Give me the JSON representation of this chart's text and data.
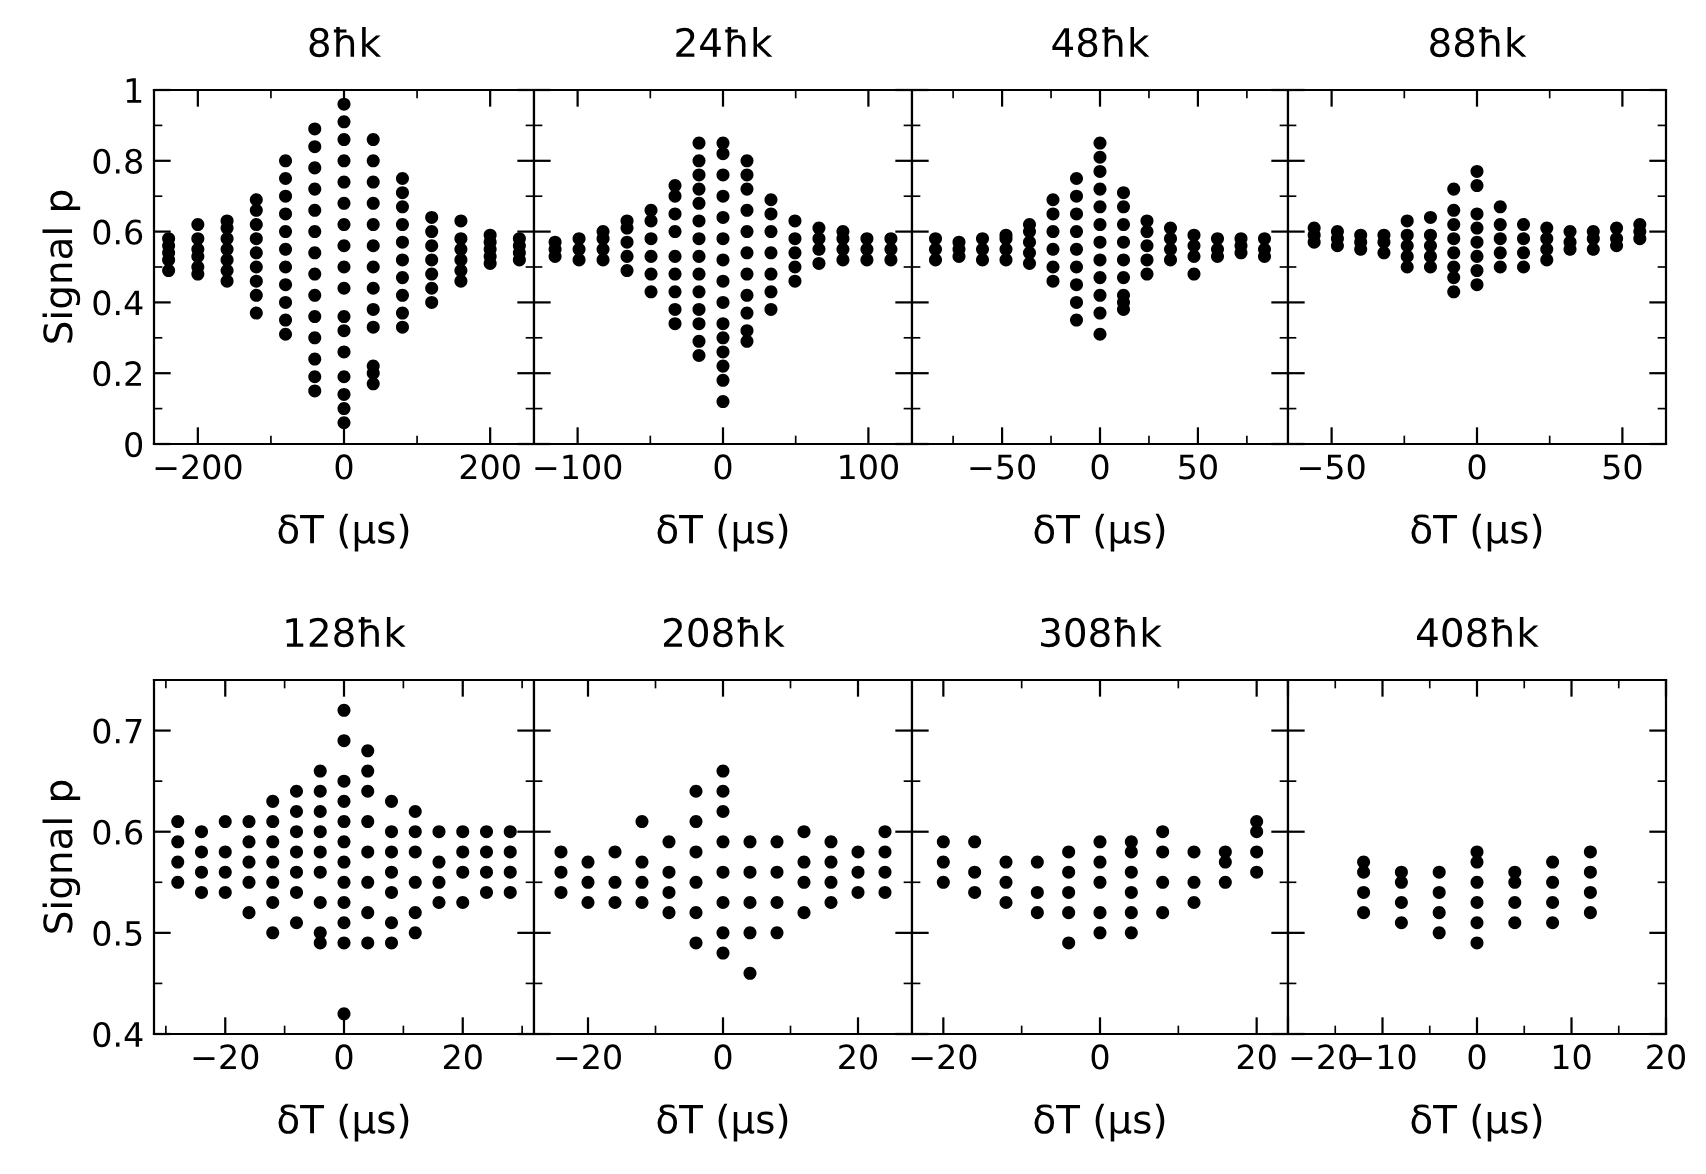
{
  "chart_data": [
    {
      "type": "scatter",
      "title": "8ħk",
      "xlabel": "δT (μs)",
      "ylabel": "Signal p",
      "color": "#000000",
      "marker": "circle",
      "x": [
        -240,
        -240,
        -240,
        -240,
        -240,
        -200,
        -200,
        -200,
        -200,
        -200,
        -200,
        -160,
        -160,
        -160,
        -160,
        -160,
        -160,
        -160,
        -120,
        -120,
        -120,
        -120,
        -120,
        -120,
        -120,
        -120,
        -120,
        -80,
        -80,
        -80,
        -80,
        -80,
        -80,
        -80,
        -80,
        -80,
        -80,
        -80,
        -40,
        -40,
        -40,
        -40,
        -40,
        -40,
        -40,
        -40,
        -40,
        -40,
        -40,
        -40,
        -40,
        -40,
        0,
        0,
        0,
        0,
        0,
        0,
        0,
        0,
        0,
        0,
        0,
        0,
        0,
        0,
        0,
        0,
        0,
        40,
        40,
        40,
        40,
        40,
        40,
        40,
        40,
        40,
        40,
        40,
        40,
        40,
        80,
        80,
        80,
        80,
        80,
        80,
        80,
        80,
        80,
        80,
        120,
        120,
        120,
        120,
        120,
        120,
        120,
        160,
        160,
        160,
        160,
        160,
        160,
        200,
        200,
        200,
        200,
        200,
        240,
        240,
        240,
        240
      ],
      "values": [
        0.49,
        0.52,
        0.54,
        0.56,
        0.58,
        0.48,
        0.5,
        0.53,
        0.55,
        0.58,
        0.62,
        0.46,
        0.49,
        0.52,
        0.55,
        0.58,
        0.61,
        0.63,
        0.37,
        0.42,
        0.46,
        0.5,
        0.54,
        0.58,
        0.62,
        0.66,
        0.69,
        0.31,
        0.35,
        0.4,
        0.45,
        0.5,
        0.55,
        0.6,
        0.65,
        0.7,
        0.75,
        0.8,
        0.15,
        0.19,
        0.24,
        0.3,
        0.36,
        0.42,
        0.48,
        0.54,
        0.6,
        0.66,
        0.72,
        0.78,
        0.84,
        0.89,
        0.06,
        0.1,
        0.14,
        0.19,
        0.26,
        0.32,
        0.36,
        0.44,
        0.5,
        0.56,
        0.62,
        0.68,
        0.74,
        0.8,
        0.86,
        0.91,
        0.96,
        0.17,
        0.2,
        0.22,
        0.33,
        0.38,
        0.44,
        0.5,
        0.56,
        0.62,
        0.68,
        0.74,
        0.8,
        0.86,
        0.33,
        0.37,
        0.42,
        0.47,
        0.52,
        0.57,
        0.62,
        0.67,
        0.71,
        0.75,
        0.4,
        0.44,
        0.48,
        0.52,
        0.56,
        0.6,
        0.64,
        0.46,
        0.49,
        0.52,
        0.55,
        0.58,
        0.63,
        0.51,
        0.53,
        0.55,
        0.57,
        0.59,
        0.52,
        0.54,
        0.56,
        0.58
      ],
      "xlim": [
        -260,
        260
      ],
      "xticks": [
        -200,
        0,
        200
      ],
      "ylim": [
        0,
        1
      ],
      "yticks": [
        0,
        0.2,
        0.4,
        0.6,
        0.8,
        1
      ]
    },
    {
      "type": "scatter",
      "title": "24ħk",
      "xlabel": "δT (μs)",
      "color": "#000000",
      "marker": "circle",
      "tick_labels": "x",
      "x": [
        -115.5,
        -115.5,
        -115.5,
        -99,
        -99,
        -99,
        -82.5,
        -82.5,
        -82.5,
        -82.5,
        -66,
        -66,
        -66,
        -66,
        -66,
        -49.5,
        -49.5,
        -49.5,
        -49.5,
        -49.5,
        -49.5,
        -33,
        -33,
        -33,
        -33,
        -33,
        -33,
        -33,
        -33,
        -33,
        -16.5,
        -16.5,
        -16.5,
        -16.5,
        -16.5,
        -16.5,
        -16.5,
        -16.5,
        -16.5,
        -16.5,
        -16.5,
        -16.5,
        -16.5,
        -16.5,
        0,
        0,
        0,
        0,
        0,
        0,
        0,
        0,
        0,
        0,
        0,
        0,
        0,
        0,
        0,
        16.5,
        16.5,
        16.5,
        16.5,
        16.5,
        16.5,
        16.5,
        16.5,
        16.5,
        16.5,
        16.5,
        33,
        33,
        33,
        33,
        33,
        33,
        33,
        49.5,
        49.5,
        49.5,
        49.5,
        49.5,
        66,
        66,
        66,
        66,
        82.5,
        82.5,
        82.5,
        82.5,
        99,
        99,
        99,
        115.5,
        115.5,
        115.5
      ],
      "values": [
        0.53,
        0.55,
        0.57,
        0.52,
        0.55,
        0.58,
        0.52,
        0.55,
        0.58,
        0.6,
        0.49,
        0.53,
        0.57,
        0.61,
        0.63,
        0.43,
        0.48,
        0.53,
        0.58,
        0.63,
        0.66,
        0.34,
        0.38,
        0.43,
        0.48,
        0.53,
        0.6,
        0.65,
        0.7,
        0.73,
        0.25,
        0.29,
        0.34,
        0.38,
        0.43,
        0.48,
        0.53,
        0.58,
        0.63,
        0.68,
        0.72,
        0.76,
        0.8,
        0.85,
        0.12,
        0.18,
        0.22,
        0.26,
        0.3,
        0.34,
        0.4,
        0.46,
        0.52,
        0.58,
        0.64,
        0.7,
        0.76,
        0.82,
        0.85,
        0.29,
        0.32,
        0.37,
        0.42,
        0.48,
        0.54,
        0.6,
        0.66,
        0.72,
        0.76,
        0.8,
        0.38,
        0.43,
        0.48,
        0.54,
        0.6,
        0.65,
        0.69,
        0.46,
        0.5,
        0.54,
        0.58,
        0.63,
        0.51,
        0.55,
        0.58,
        0.61,
        0.52,
        0.55,
        0.58,
        0.6,
        0.52,
        0.55,
        0.58,
        0.52,
        0.55,
        0.58
      ],
      "xlim": [
        -130,
        130
      ],
      "xticks": [
        -100,
        0,
        100
      ],
      "ylim": [
        0,
        1
      ],
      "yticks": [
        0,
        0.2,
        0.4,
        0.6,
        0.8,
        1
      ]
    },
    {
      "type": "scatter",
      "title": "48ħk",
      "xlabel": "δT (μs)",
      "color": "#000000",
      "marker": "circle",
      "tick_labels": "x",
      "x": [
        -84,
        -84,
        -84,
        -72,
        -72,
        -72,
        -60,
        -60,
        -60,
        -48,
        -48,
        -48,
        -48,
        -36,
        -36,
        -36,
        -36,
        -36,
        -24,
        -24,
        -24,
        -24,
        -24,
        -24,
        -12,
        -12,
        -12,
        -12,
        -12,
        -12,
        -12,
        -12,
        -12,
        0,
        0,
        0,
        0,
        0,
        0,
        0,
        0,
        0,
        0,
        0,
        0,
        12,
        12,
        12,
        12,
        12,
        12,
        12,
        12,
        12,
        24,
        24,
        24,
        24,
        24,
        36,
        36,
        36,
        36,
        48,
        48,
        48,
        48,
        60,
        60,
        60,
        72,
        72,
        72,
        84,
        84,
        84
      ],
      "values": [
        0.52,
        0.55,
        0.58,
        0.53,
        0.55,
        0.57,
        0.52,
        0.55,
        0.58,
        0.52,
        0.55,
        0.58,
        0.59,
        0.51,
        0.54,
        0.57,
        0.6,
        0.62,
        0.46,
        0.5,
        0.55,
        0.6,
        0.65,
        0.69,
        0.35,
        0.4,
        0.45,
        0.5,
        0.55,
        0.6,
        0.65,
        0.7,
        0.75,
        0.31,
        0.37,
        0.42,
        0.47,
        0.52,
        0.57,
        0.62,
        0.67,
        0.72,
        0.77,
        0.81,
        0.85,
        0.38,
        0.4,
        0.42,
        0.47,
        0.52,
        0.57,
        0.62,
        0.67,
        0.71,
        0.48,
        0.52,
        0.56,
        0.6,
        0.63,
        0.52,
        0.55,
        0.58,
        0.61,
        0.48,
        0.53,
        0.56,
        0.59,
        0.53,
        0.55,
        0.58,
        0.54,
        0.56,
        0.58,
        0.53,
        0.55,
        0.58
      ],
      "xlim": [
        -96,
        96
      ],
      "xticks": [
        -50,
        0,
        50
      ],
      "ylim": [
        0,
        1
      ],
      "yticks": [
        0,
        0.2,
        0.4,
        0.6,
        0.8,
        1
      ]
    },
    {
      "type": "scatter",
      "title": "88ħk",
      "xlabel": "δT (μs)",
      "color": "#000000",
      "marker": "circle",
      "tick_labels": "x",
      "x": [
        -56,
        -56,
        -56,
        -48,
        -48,
        -48,
        -40,
        -40,
        -40,
        -32,
        -32,
        -32,
        -24,
        -24,
        -24,
        -24,
        -24,
        -16,
        -16,
        -16,
        -16,
        -16,
        -8,
        -8,
        -8,
        -8,
        -8,
        -8,
        -8,
        -8,
        0,
        0,
        0,
        0,
        0,
        0,
        0,
        0,
        8,
        8,
        8,
        8,
        8,
        16,
        16,
        16,
        16,
        24,
        24,
        24,
        24,
        32,
        32,
        32,
        40,
        40,
        40,
        48,
        48,
        48,
        56,
        56,
        56
      ],
      "values": [
        0.57,
        0.59,
        0.61,
        0.56,
        0.58,
        0.6,
        0.55,
        0.57,
        0.59,
        0.54,
        0.57,
        0.59,
        0.5,
        0.53,
        0.56,
        0.59,
        0.63,
        0.5,
        0.53,
        0.56,
        0.59,
        0.64,
        0.43,
        0.47,
        0.5,
        0.54,
        0.58,
        0.62,
        0.66,
        0.72,
        0.45,
        0.49,
        0.53,
        0.57,
        0.61,
        0.65,
        0.73,
        0.77,
        0.5,
        0.54,
        0.58,
        0.62,
        0.67,
        0.5,
        0.54,
        0.58,
        0.62,
        0.52,
        0.55,
        0.58,
        0.61,
        0.55,
        0.57,
        0.6,
        0.55,
        0.58,
        0.6,
        0.56,
        0.58,
        0.61,
        0.58,
        0.6,
        0.62
      ],
      "xlim": [
        -65,
        65
      ],
      "xticks": [
        -50,
        0,
        50
      ],
      "ylim": [
        0,
        1
      ],
      "yticks": [
        0,
        0.2,
        0.4,
        0.6,
        0.8,
        1
      ]
    },
    {
      "type": "scatter",
      "title": "128ħk",
      "xlabel": "δT (μs)",
      "ylabel": "Signal p",
      "color": "#000000",
      "marker": "circle",
      "x": [
        -28,
        -28,
        -28,
        -28,
        -24,
        -24,
        -24,
        -24,
        -20,
        -20,
        -20,
        -20,
        -16,
        -16,
        -16,
        -16,
        -16,
        -12,
        -12,
        -12,
        -12,
        -12,
        -12,
        -12,
        -8,
        -8,
        -8,
        -8,
        -8,
        -8,
        -8,
        -4,
        -4,
        -4,
        -4,
        -4,
        -4,
        -4,
        -4,
        -4,
        0,
        0,
        0,
        0,
        0,
        0,
        0,
        0,
        0,
        0,
        0,
        0,
        4,
        4,
        4,
        4,
        4,
        4,
        4,
        4,
        8,
        8,
        8,
        8,
        8,
        8,
        8,
        12,
        12,
        12,
        12,
        12,
        12,
        16,
        16,
        16,
        16,
        20,
        20,
        20,
        20,
        24,
        24,
        24,
        24,
        28,
        28,
        28,
        28
      ],
      "values": [
        0.55,
        0.57,
        0.59,
        0.61,
        0.54,
        0.56,
        0.58,
        0.6,
        0.54,
        0.56,
        0.58,
        0.61,
        0.52,
        0.55,
        0.57,
        0.59,
        0.61,
        0.5,
        0.53,
        0.55,
        0.57,
        0.59,
        0.61,
        0.63,
        0.51,
        0.54,
        0.56,
        0.58,
        0.6,
        0.62,
        0.64,
        0.49,
        0.5,
        0.53,
        0.56,
        0.58,
        0.6,
        0.62,
        0.64,
        0.66,
        0.42,
        0.49,
        0.51,
        0.53,
        0.55,
        0.57,
        0.59,
        0.61,
        0.63,
        0.65,
        0.69,
        0.72,
        0.49,
        0.52,
        0.55,
        0.58,
        0.61,
        0.64,
        0.66,
        0.68,
        0.49,
        0.51,
        0.54,
        0.56,
        0.58,
        0.6,
        0.63,
        0.5,
        0.52,
        0.55,
        0.58,
        0.6,
        0.62,
        0.53,
        0.55,
        0.57,
        0.6,
        0.53,
        0.56,
        0.58,
        0.6,
        0.54,
        0.56,
        0.58,
        0.6,
        0.54,
        0.56,
        0.58,
        0.6
      ],
      "xlim": [
        -32,
        32
      ],
      "xticks": [
        -20,
        0,
        20
      ],
      "ylim": [
        0.4,
        0.75
      ],
      "yticks": [
        0.4,
        0.5,
        0.6,
        0.7
      ]
    },
    {
      "type": "scatter",
      "title": "208ħk",
      "xlabel": "δT (μs)",
      "color": "#000000",
      "marker": "circle",
      "tick_labels": "x",
      "x": [
        -24,
        -24,
        -24,
        -20,
        -20,
        -20,
        -16,
        -16,
        -16,
        -12,
        -12,
        -12,
        -12,
        -8,
        -8,
        -8,
        -8,
        -4,
        -4,
        -4,
        -4,
        -4,
        -4,
        0,
        0,
        0,
        0,
        0,
        0,
        0,
        0,
        4,
        4,
        4,
        4,
        4,
        8,
        8,
        8,
        8,
        12,
        12,
        12,
        12,
        16,
        16,
        16,
        16,
        20,
        20,
        20,
        24,
        24,
        24,
        24
      ],
      "values": [
        0.54,
        0.56,
        0.58,
        0.53,
        0.55,
        0.57,
        0.53,
        0.55,
        0.58,
        0.53,
        0.55,
        0.57,
        0.61,
        0.52,
        0.54,
        0.56,
        0.59,
        0.49,
        0.52,
        0.55,
        0.58,
        0.61,
        0.64,
        0.48,
        0.5,
        0.53,
        0.56,
        0.59,
        0.62,
        0.64,
        0.66,
        0.46,
        0.5,
        0.53,
        0.56,
        0.59,
        0.5,
        0.53,
        0.56,
        0.59,
        0.52,
        0.55,
        0.57,
        0.6,
        0.53,
        0.55,
        0.57,
        0.59,
        0.54,
        0.56,
        0.58,
        0.54,
        0.56,
        0.58,
        0.6
      ],
      "xlim": [
        -28,
        28
      ],
      "xticks": [
        -20,
        0,
        20
      ],
      "ylim": [
        0.4,
        0.75
      ],
      "yticks": [
        0.4,
        0.5,
        0.6,
        0.7
      ]
    },
    {
      "type": "scatter",
      "title": "308ħk",
      "xlabel": "δT (μs)",
      "color": "#000000",
      "marker": "circle",
      "tick_labels": "x",
      "x": [
        -20,
        -20,
        -20,
        -16,
        -16,
        -16,
        -12,
        -12,
        -12,
        -8,
        -8,
        -8,
        -4,
        -4,
        -4,
        -4,
        -4,
        0,
        0,
        0,
        0,
        0,
        4,
        4,
        4,
        4,
        4,
        4,
        8,
        8,
        8,
        8,
        12,
        12,
        12,
        16,
        16,
        16,
        20,
        20,
        20,
        20
      ],
      "values": [
        0.55,
        0.57,
        0.59,
        0.54,
        0.56,
        0.59,
        0.53,
        0.55,
        0.57,
        0.52,
        0.54,
        0.57,
        0.49,
        0.52,
        0.54,
        0.56,
        0.58,
        0.5,
        0.52,
        0.55,
        0.57,
        0.59,
        0.5,
        0.52,
        0.54,
        0.56,
        0.58,
        0.59,
        0.52,
        0.55,
        0.58,
        0.6,
        0.53,
        0.55,
        0.58,
        0.55,
        0.57,
        0.58,
        0.56,
        0.58,
        0.6,
        0.61
      ],
      "xlim": [
        -24,
        24
      ],
      "xticks": [
        -20,
        0,
        20
      ],
      "ylim": [
        0.4,
        0.75
      ],
      "yticks": [
        0.4,
        0.5,
        0.6,
        0.7
      ]
    },
    {
      "type": "scatter",
      "title": "408ħk",
      "xlabel": "δT (μs)",
      "color": "#000000",
      "marker": "circle",
      "tick_labels": "x",
      "x": [
        -12,
        -12,
        -12,
        -12,
        -8,
        -8,
        -8,
        -8,
        -4,
        -4,
        -4,
        -4,
        0,
        0,
        0,
        0,
        0,
        0,
        4,
        4,
        4,
        4,
        8,
        8,
        8,
        8,
        12,
        12,
        12,
        12
      ],
      "values": [
        0.52,
        0.54,
        0.56,
        0.57,
        0.51,
        0.53,
        0.55,
        0.56,
        0.5,
        0.52,
        0.54,
        0.56,
        0.49,
        0.51,
        0.53,
        0.55,
        0.57,
        0.58,
        0.51,
        0.53,
        0.55,
        0.56,
        0.51,
        0.53,
        0.55,
        0.57,
        0.52,
        0.54,
        0.56,
        0.58
      ],
      "xlim": [
        -20,
        20
      ],
      "xticks": [
        -20,
        -10,
        0,
        10,
        20
      ],
      "ylim": [
        0.4,
        0.75
      ],
      "yticks": [
        0.4,
        0.5,
        0.6,
        0.7
      ]
    }
  ]
}
